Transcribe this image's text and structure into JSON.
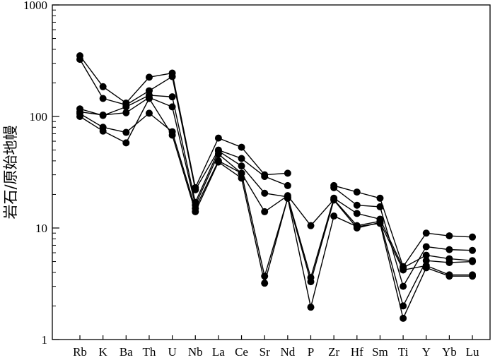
{
  "chart_data": {
    "type": "line",
    "title": "",
    "xlabel": "",
    "ylabel": "岩石/原始地幔",
    "y_scale": "log",
    "ylim": [
      1,
      1000
    ],
    "yticks": [
      1,
      10,
      100,
      1000
    ],
    "ytick_labels": [
      "1",
      "10",
      "100",
      "1000"
    ],
    "grid": false,
    "categories": [
      "Rb",
      "K",
      "Ba",
      "Th",
      "U",
      "Nb",
      "La",
      "Ce",
      "Sr",
      "Nd",
      "P",
      "Zr",
      "Hf",
      "Sm",
      "Ti",
      "Y",
      "Yb",
      "Lu"
    ],
    "line_color": "#000000",
    "series": [
      {
        "values": [
          350,
          185,
          132,
          225,
          245,
          23,
          64,
          53,
          30,
          31,
          null,
          24,
          21,
          18.5,
          4.5,
          9,
          8.5,
          8.3
        ]
      },
      {
        "values": [
          325,
          145,
          127,
          170,
          228,
          22,
          50,
          42,
          29,
          24,
          null,
          23,
          16,
          15.5,
          3,
          6.8,
          6.4,
          6.3
        ]
      },
      {
        "values": [
          117,
          102,
          122,
          155,
          150,
          17,
          49,
          36,
          20.5,
          19,
          3.6,
          18.5,
          13.5,
          12,
          4.4,
          5.7,
          5.3,
          5.1
        ]
      },
      {
        "values": [
          110,
          103,
          108,
          148,
          122,
          16,
          46,
          31,
          14,
          19.5,
          10.5,
          18,
          10.5,
          11.5,
          2,
          5.1,
          4.9,
          5.0
        ]
      },
      {
        "values": [
          106,
          80,
          72,
          107,
          73,
          15,
          40,
          31,
          3.7,
          18.5,
          3.3,
          17.8,
          10,
          11.2,
          4.2,
          4.6,
          3.8,
          3.8
        ]
      },
      {
        "values": [
          100,
          74,
          58,
          145,
          68,
          14,
          39,
          28,
          3.2,
          18.5,
          1.95,
          12.8,
          10.3,
          11,
          1.55,
          4.4,
          3.7,
          3.7
        ]
      }
    ]
  }
}
